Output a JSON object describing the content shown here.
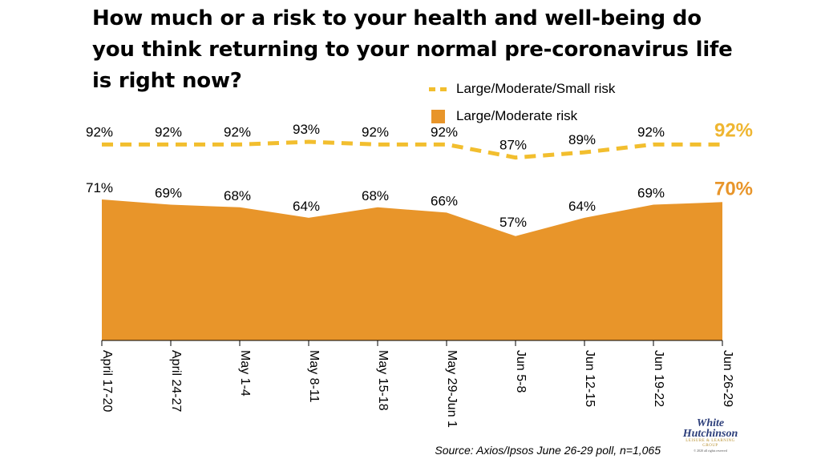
{
  "title": "How much or a risk to your health and well-being do you think returning to your normal pre-coronavirus life is right now?",
  "legend": {
    "dashed": "Large/Moderate/Small risk",
    "area": "Large/Moderate risk"
  },
  "source": "Source: Axios/Ipsos June 26-29 poll, n=1,065",
  "logo": {
    "line1": "White",
    "line2": "Hutchinson",
    "tagline": "LEISURE & LEARNING GROUP",
    "copyright": "© 2020 all rights reserved"
  },
  "colors": {
    "area": "#E8952A",
    "dashed": "#F2BE2E",
    "highlight_dashed": "#EFB631",
    "highlight_area": "#E8952A"
  },
  "chart_data": {
    "type": "area",
    "categories": [
      "April 17-20",
      "April 24-27",
      "May 1-4",
      "May 8-11",
      "May 15-18",
      "May 29-Jun 1",
      "Jun 5-8",
      "Jun 12-15",
      "Jun 19-22",
      "Jun 26-29"
    ],
    "series": [
      {
        "name": "Large/Moderate/Small risk",
        "style": "dashed-line",
        "values": [
          92,
          92,
          92,
          93,
          92,
          92,
          87,
          89,
          92,
          92
        ],
        "labels": [
          "92%",
          "92%",
          "92%",
          "93%",
          "92%",
          "92%",
          "87%",
          "89%",
          "92%",
          "92%"
        ]
      },
      {
        "name": "Large/Moderate risk",
        "style": "filled-area",
        "values": [
          71,
          69,
          68,
          64,
          68,
          66,
          57,
          64,
          69,
          70
        ],
        "labels": [
          "71%",
          "69%",
          "68%",
          "64%",
          "68%",
          "66%",
          "57%",
          "64%",
          "69%",
          "70%"
        ]
      }
    ],
    "grid": false,
    "legend_position": "top-right",
    "last_point_highlighted": true
  }
}
